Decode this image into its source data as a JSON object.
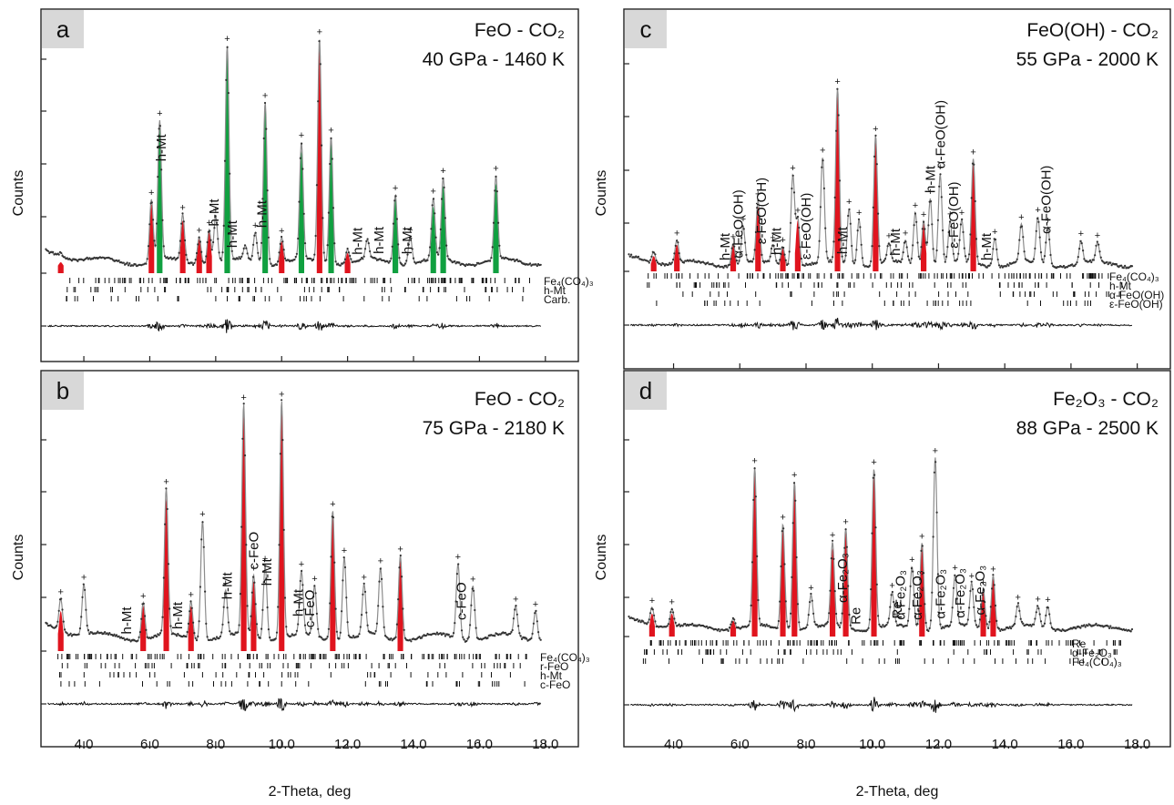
{
  "figure": {
    "x_axis_title": "2-Theta, deg",
    "y_axis_title": "Counts",
    "colors": {
      "peak_red": "#e0141e",
      "peak_green": "#10a040",
      "calc_line": "#8c8c8c",
      "observed": "#333333"
    }
  },
  "chart_data": [
    {
      "type": "line",
      "panel": "a",
      "title_line1": "FeO - CO₂",
      "title_line2": "40 GPa - 1460 K",
      "xlabel": "2-Theta, deg",
      "ylabel": "Counts",
      "xlim": [
        2.7,
        19.0
      ],
      "x_ticks": [
        "4.0",
        "6.0",
        "8.0",
        "10.0",
        "12.0",
        "14.0",
        "16.0",
        "18.0"
      ],
      "show_x_tick_labels": false,
      "baseline": 0.09,
      "peaks": [
        {
          "x": 3.3,
          "h": 0.02,
          "c": "red"
        },
        {
          "x": 6.05,
          "h": 0.27,
          "c": "red"
        },
        {
          "x": 6.3,
          "h": 0.6,
          "c": "green"
        },
        {
          "x": 7.0,
          "h": 0.2,
          "c": "red"
        },
        {
          "x": 7.5,
          "h": 0.12,
          "c": "red"
        },
        {
          "x": 7.8,
          "h": 0.15,
          "c": "red"
        },
        {
          "x": 8.0,
          "h": 0.2,
          "c": "gray"
        },
        {
          "x": 8.35,
          "h": 0.92,
          "c": "green"
        },
        {
          "x": 8.9,
          "h": 0.06,
          "c": "gray"
        },
        {
          "x": 9.2,
          "h": 0.13,
          "c": "gray"
        },
        {
          "x": 9.5,
          "h": 0.7,
          "c": "green"
        },
        {
          "x": 10.0,
          "h": 0.11,
          "c": "red"
        },
        {
          "x": 10.6,
          "h": 0.5,
          "c": "green"
        },
        {
          "x": 11.15,
          "h": 0.96,
          "c": "red"
        },
        {
          "x": 11.5,
          "h": 0.55,
          "c": "green"
        },
        {
          "x": 12.0,
          "h": 0.06,
          "c": "red"
        },
        {
          "x": 12.6,
          "h": 0.08,
          "c": "gray"
        },
        {
          "x": 13.45,
          "h": 0.3,
          "c": "green"
        },
        {
          "x": 13.9,
          "h": 0.12,
          "c": "gray"
        },
        {
          "x": 14.6,
          "h": 0.26,
          "c": "green"
        },
        {
          "x": 14.9,
          "h": 0.35,
          "c": "green"
        },
        {
          "x": 16.5,
          "h": 0.36,
          "c": "green"
        }
      ],
      "peak_labels": [
        {
          "text": "h-Mt",
          "x": 6.35
        },
        {
          "text": "h-Mt",
          "x": 7.95
        },
        {
          "text": "h-Mt",
          "x": 8.5
        },
        {
          "text": "h-Mt",
          "x": 9.4
        },
        {
          "text": "h-Mt",
          "x": 12.3
        },
        {
          "text": "h-Mt",
          "x": 12.95
        },
        {
          "text": "h-Mt",
          "x": 13.8
        }
      ],
      "reference_phases": [
        "Fe₄(CO₄)₃",
        "h-Mt",
        "Carb."
      ]
    },
    {
      "type": "line",
      "panel": "b",
      "title_line1": "FeO - CO₂",
      "title_line2": "75 GPa - 2180 K",
      "xlabel": "2-Theta, deg",
      "ylabel": "Counts",
      "xlim": [
        2.7,
        19.0
      ],
      "x_ticks": [
        "4.0",
        "6.0",
        "8.0",
        "10.0",
        "12.0",
        "14.0",
        "16.0",
        "18.0"
      ],
      "show_x_tick_labels": true,
      "baseline": 0.1,
      "peaks": [
        {
          "x": 3.3,
          "h": 0.13,
          "c": "red"
        },
        {
          "x": 4.0,
          "h": 0.2,
          "c": "gray"
        },
        {
          "x": 5.8,
          "h": 0.15,
          "c": "red"
        },
        {
          "x": 6.5,
          "h": 0.58,
          "c": "red"
        },
        {
          "x": 7.25,
          "h": 0.15,
          "c": "red"
        },
        {
          "x": 7.6,
          "h": 0.48,
          "c": "gray"
        },
        {
          "x": 8.3,
          "h": 0.18,
          "c": "gray"
        },
        {
          "x": 8.85,
          "h": 0.92,
          "c": "red"
        },
        {
          "x": 9.15,
          "h": 0.25,
          "c": "red"
        },
        {
          "x": 9.5,
          "h": 0.3,
          "c": "gray"
        },
        {
          "x": 10.0,
          "h": 0.95,
          "c": "red"
        },
        {
          "x": 10.6,
          "h": 0.25,
          "c": "gray"
        },
        {
          "x": 11.0,
          "h": 0.2,
          "c": "gray"
        },
        {
          "x": 11.55,
          "h": 0.52,
          "c": "red"
        },
        {
          "x": 11.9,
          "h": 0.33,
          "c": "gray"
        },
        {
          "x": 12.5,
          "h": 0.2,
          "c": "gray"
        },
        {
          "x": 13.0,
          "h": 0.27,
          "c": "gray"
        },
        {
          "x": 13.6,
          "h": 0.34,
          "c": "red"
        },
        {
          "x": 15.35,
          "h": 0.3,
          "c": "gray"
        },
        {
          "x": 15.8,
          "h": 0.22,
          "c": "gray"
        },
        {
          "x": 17.1,
          "h": 0.12,
          "c": "gray"
        },
        {
          "x": 17.7,
          "h": 0.12,
          "c": "gray"
        }
      ],
      "peak_labels": [
        {
          "text": "h-Mt",
          "x": 5.3
        },
        {
          "text": "h-Mt",
          "x": 6.85
        },
        {
          "text": "h-Mt",
          "x": 8.35
        },
        {
          "text": "c-FeO",
          "x": 9.15
        },
        {
          "text": "h-Mt",
          "x": 9.55
        },
        {
          "text": "h-Mt",
          "x": 10.5
        },
        {
          "text": "c-FeO",
          "x": 10.85
        },
        {
          "text": "c-FeO",
          "x": 15.45
        }
      ],
      "reference_phases": [
        "Fe₄(CO₄)₃",
        "r-FeO",
        "h-Mt",
        "c-FeO"
      ]
    },
    {
      "type": "line",
      "panel": "c",
      "title_line1": "FeO(OH) - CO₂",
      "title_line2": "55 GPa - 2000 K",
      "xlabel": "2-Theta, deg",
      "ylabel": "Counts",
      "xlim": [
        2.5,
        19.0
      ],
      "x_ticks": [
        "4.0",
        "6.0",
        "8.0",
        "10.0",
        "12.0",
        "14.0",
        "16.0",
        "18.0"
      ],
      "show_x_tick_labels": false,
      "baseline": 0.07,
      "peaks": [
        {
          "x": 3.4,
          "h": 0.06,
          "c": "red"
        },
        {
          "x": 4.1,
          "h": 0.12,
          "c": "red"
        },
        {
          "x": 5.8,
          "h": 0.12,
          "c": "red"
        },
        {
          "x": 6.1,
          "h": 0.2,
          "c": "gray"
        },
        {
          "x": 6.55,
          "h": 0.32,
          "c": "red"
        },
        {
          "x": 7.0,
          "h": 0.1,
          "c": "gray"
        },
        {
          "x": 7.3,
          "h": 0.1,
          "c": "red"
        },
        {
          "x": 7.6,
          "h": 0.48,
          "c": "gray"
        },
        {
          "x": 7.75,
          "h": 0.25,
          "c": "red"
        },
        {
          "x": 8.5,
          "h": 0.55,
          "c": "gray"
        },
        {
          "x": 8.95,
          "h": 0.92,
          "c": "red"
        },
        {
          "x": 9.3,
          "h": 0.3,
          "c": "gray"
        },
        {
          "x": 9.6,
          "h": 0.25,
          "c": "gray"
        },
        {
          "x": 10.1,
          "h": 0.68,
          "c": "red"
        },
        {
          "x": 10.5,
          "h": 0.1,
          "c": "gray"
        },
        {
          "x": 11.0,
          "h": 0.12,
          "c": "gray"
        },
        {
          "x": 11.3,
          "h": 0.28,
          "c": "gray"
        },
        {
          "x": 11.55,
          "h": 0.24,
          "c": "red"
        },
        {
          "x": 11.75,
          "h": 0.36,
          "c": "gray"
        },
        {
          "x": 12.05,
          "h": 0.48,
          "c": "gray"
        },
        {
          "x": 12.35,
          "h": 0.22,
          "c": "gray"
        },
        {
          "x": 12.7,
          "h": 0.22,
          "c": "gray"
        },
        {
          "x": 13.05,
          "h": 0.55,
          "c": "red"
        },
        {
          "x": 13.7,
          "h": 0.15,
          "c": "gray"
        },
        {
          "x": 14.5,
          "h": 0.2,
          "c": "gray"
        },
        {
          "x": 15.0,
          "h": 0.24,
          "c": "gray"
        },
        {
          "x": 15.3,
          "h": 0.2,
          "c": "gray"
        },
        {
          "x": 16.3,
          "h": 0.12,
          "c": "gray"
        },
        {
          "x": 16.8,
          "h": 0.1,
          "c": "gray"
        }
      ],
      "peak_labels": [
        {
          "text": "h-Mt",
          "x": 5.55
        },
        {
          "text": "α-FeO(OH)",
          "x": 5.95
        },
        {
          "text": "ε-FeO(OH)",
          "x": 6.65
        },
        {
          "text": "h-Mt",
          "x": 7.1
        },
        {
          "text": "ε-FeO(OH)",
          "x": 8.0
        },
        {
          "text": "h-Mt",
          "x": 9.1
        },
        {
          "text": "h-Mt",
          "x": 10.7
        },
        {
          "text": "h-Mt",
          "x": 11.75
        },
        {
          "text": "α-FeO(OH)",
          "x": 12.05
        },
        {
          "text": "ε-FeO(OH)",
          "x": 12.45
        },
        {
          "text": "h-Mt",
          "x": 13.45
        },
        {
          "text": "α-FeO(OH)",
          "x": 15.25
        }
      ],
      "reference_phases": [
        "Fe₄(CO₄)₃",
        "h-Mt",
        "α-FeO(OH)",
        "ε-FeO(OH)"
      ]
    },
    {
      "type": "line",
      "panel": "d",
      "title_line1": "Fe₂O₃ - CO₂",
      "title_line2": "88 GPa - 2500 K",
      "xlabel": "2-Theta, deg",
      "ylabel": "Counts",
      "xlim": [
        2.5,
        19.0
      ],
      "x_ticks": [
        "4.0",
        "6.0",
        "8.0",
        "10.0",
        "12.0",
        "14.0",
        "16.0",
        "18.0"
      ],
      "show_x_tick_labels": true,
      "baseline": 0.09,
      "peaks": [
        {
          "x": 3.35,
          "h": 0.1,
          "c": "red"
        },
        {
          "x": 3.95,
          "h": 0.1,
          "c": "red"
        },
        {
          "x": 5.8,
          "h": 0.06,
          "c": "red"
        },
        {
          "x": 6.45,
          "h": 0.87,
          "c": "red"
        },
        {
          "x": 7.3,
          "h": 0.58,
          "c": "red"
        },
        {
          "x": 7.65,
          "h": 0.82,
          "c": "red"
        },
        {
          "x": 8.15,
          "h": 0.18,
          "c": "gray"
        },
        {
          "x": 8.8,
          "h": 0.46,
          "c": "red"
        },
        {
          "x": 9.2,
          "h": 0.55,
          "c": "red"
        },
        {
          "x": 10.05,
          "h": 0.88,
          "c": "red"
        },
        {
          "x": 10.6,
          "h": 0.18,
          "c": "gray"
        },
        {
          "x": 11.2,
          "h": 0.34,
          "c": "gray"
        },
        {
          "x": 11.5,
          "h": 0.48,
          "c": "red"
        },
        {
          "x": 11.9,
          "h": 0.95,
          "c": "gray"
        },
        {
          "x": 12.5,
          "h": 0.28,
          "c": "gray"
        },
        {
          "x": 13.0,
          "h": 0.24,
          "c": "gray"
        },
        {
          "x": 13.35,
          "h": 0.22,
          "c": "red"
        },
        {
          "x": 13.65,
          "h": 0.3,
          "c": "red"
        },
        {
          "x": 14.4,
          "h": 0.12,
          "c": "gray"
        },
        {
          "x": 15.0,
          "h": 0.11,
          "c": "gray"
        },
        {
          "x": 15.3,
          "h": 0.12,
          "c": "gray"
        }
      ],
      "peak_labels": [
        {
          "text": "α-Fe₂O₃",
          "x": 9.1
        },
        {
          "text": "Re",
          "x": 9.5
        },
        {
          "text": "Re",
          "x": 10.75
        },
        {
          "text": "α-Fe₂O₃",
          "x": 10.85
        },
        {
          "text": "α-Fe₂O₃",
          "x": 11.35
        },
        {
          "text": "α-Fe₂O₃",
          "x": 12.05
        },
        {
          "text": "α-Fe₂O₃",
          "x": 12.65
        },
        {
          "text": "α-Fe₂O₃",
          "x": 13.25
        }
      ],
      "reference_phases": [
        "Re",
        "α-Fe₂O₃",
        "Fe₄(CO₄)₃"
      ]
    }
  ]
}
